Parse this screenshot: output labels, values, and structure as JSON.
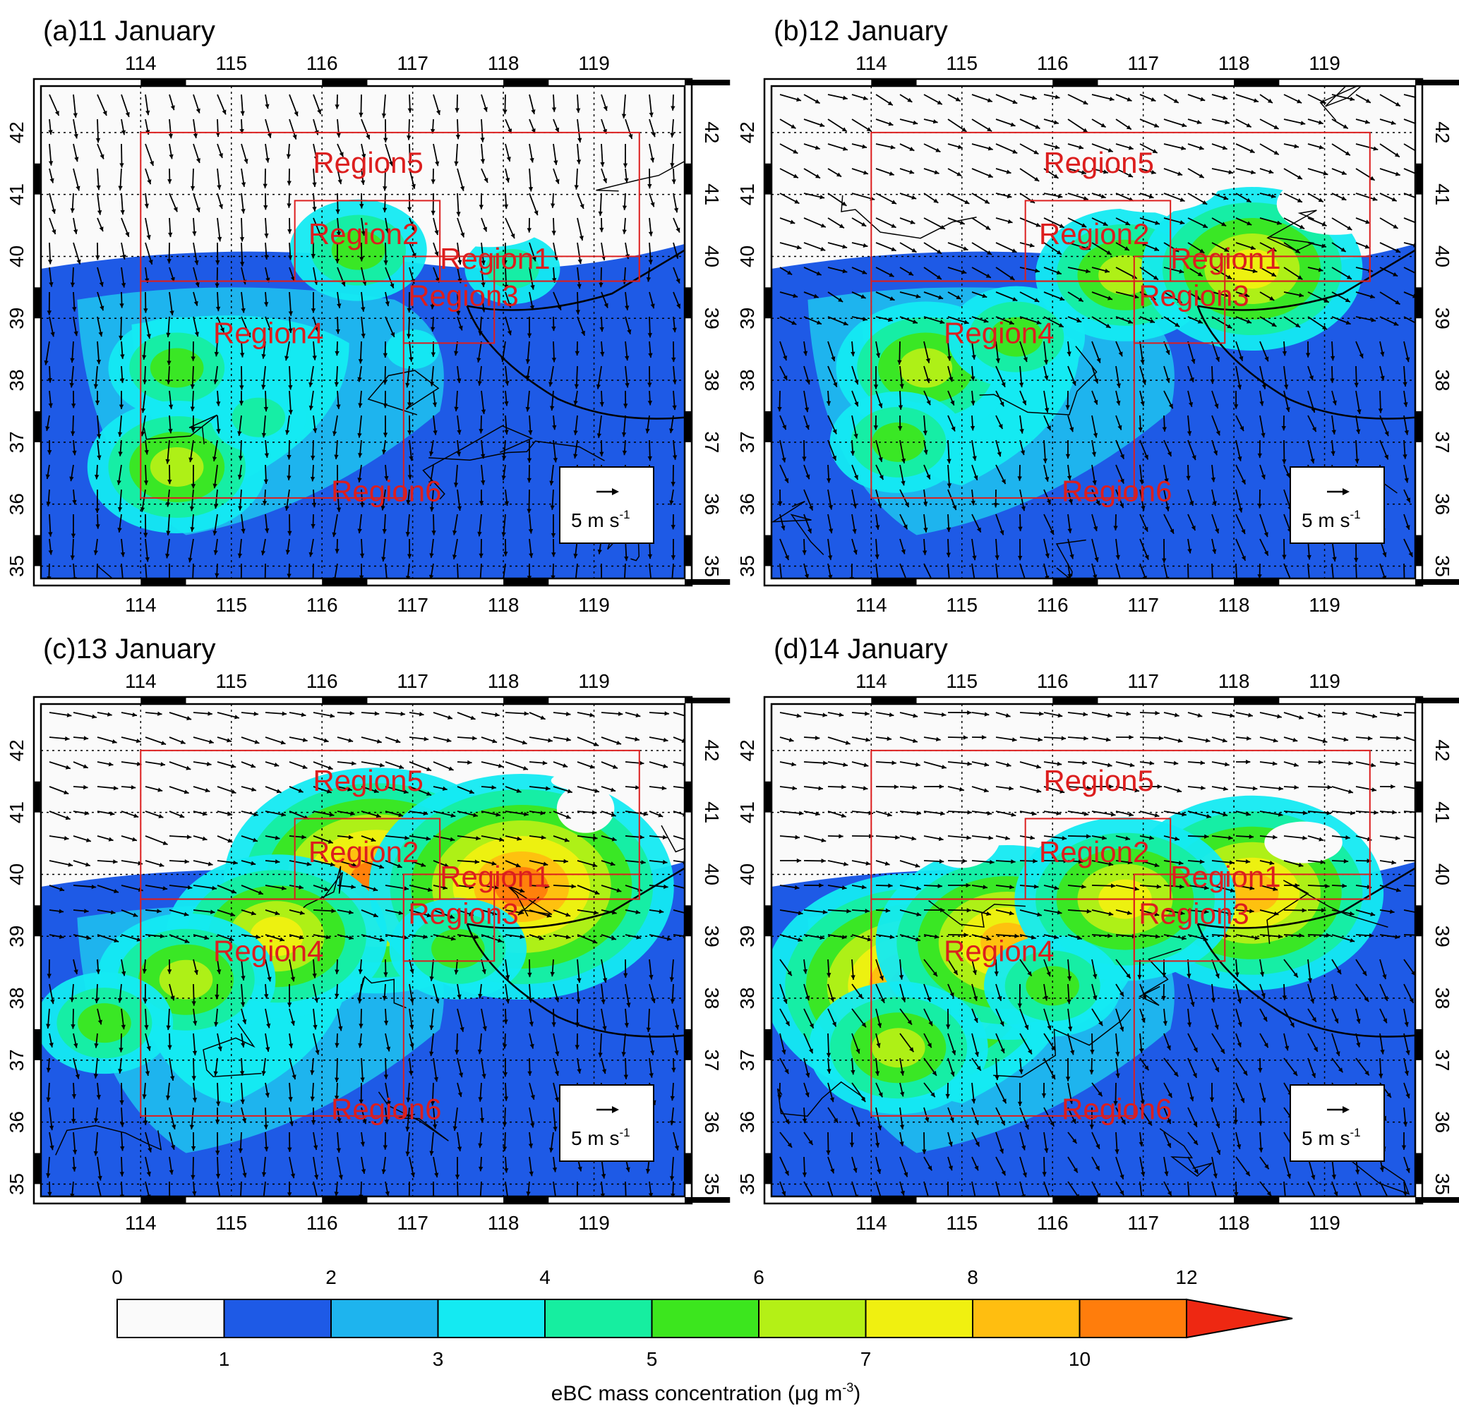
{
  "panels": [
    {
      "label": "(a)11 January",
      "date": "11 January",
      "hotspots": [
        {
          "lon": 114.4,
          "lat": 38.2,
          "level": 5
        },
        {
          "lon": 114.4,
          "lat": 36.6,
          "level": 6
        },
        {
          "lon": 116.4,
          "lat": 40.1,
          "level": 5
        },
        {
          "lon": 115.3,
          "lat": 37.4,
          "level": 4
        },
        {
          "lon": 117.0,
          "lat": 38.5,
          "level": 3
        },
        {
          "lon": 118.1,
          "lat": 39.8,
          "level": 4
        }
      ]
    },
    {
      "label": "(b)12 January",
      "date": "12 January",
      "hotspots": [
        {
          "lon": 116.8,
          "lat": 39.7,
          "level": 6
        },
        {
          "lon": 118.2,
          "lat": 39.8,
          "level": 7
        },
        {
          "lon": 114.6,
          "lat": 38.2,
          "level": 6
        },
        {
          "lon": 115.6,
          "lat": 38.7,
          "level": 5
        },
        {
          "lon": 114.3,
          "lat": 37.0,
          "level": 5
        },
        {
          "lon": 119.0,
          "lat": 38.2,
          "level": 2
        }
      ]
    },
    {
      "label": "(c)13 January",
      "date": "13 January",
      "hotspots": [
        {
          "lon": 116.6,
          "lat": 39.9,
          "level": 9
        },
        {
          "lon": 118.2,
          "lat": 39.8,
          "level": 9
        },
        {
          "lon": 115.5,
          "lat": 39.0,
          "level": 7
        },
        {
          "lon": 114.5,
          "lat": 38.3,
          "level": 6
        },
        {
          "lon": 113.6,
          "lat": 37.6,
          "level": 5
        },
        {
          "lon": 117.5,
          "lat": 38.8,
          "level": 5
        }
      ]
    },
    {
      "label": "(d)14 January",
      "date": "14 January",
      "hotspots": [
        {
          "lon": 114.5,
          "lat": 38.2,
          "level": 9
        },
        {
          "lon": 115.5,
          "lat": 38.9,
          "level": 8
        },
        {
          "lon": 118.2,
          "lat": 39.7,
          "level": 8
        },
        {
          "lon": 116.8,
          "lat": 39.6,
          "level": 7
        },
        {
          "lon": 114.3,
          "lat": 37.2,
          "level": 6
        },
        {
          "lon": 116.0,
          "lat": 38.2,
          "level": 5
        }
      ]
    }
  ],
  "axes": {
    "lon_ticks": [
      "114",
      "115",
      "116",
      "117",
      "118",
      "119"
    ],
    "lat_ticks": [
      "35",
      "36",
      "37",
      "38",
      "39",
      "40",
      "41",
      "42"
    ],
    "lon_range": [
      112.9,
      120.0
    ],
    "lat_range": [
      34.8,
      42.75
    ]
  },
  "regions": [
    {
      "name": "Region5",
      "lon": [
        114.0,
        119.5
      ],
      "lat": [
        39.6,
        42.0
      ]
    },
    {
      "name": "Region2",
      "lon": [
        115.7,
        117.3
      ],
      "lat": [
        39.6,
        40.9
      ]
    },
    {
      "name": "Region1",
      "lon": [
        117.3,
        119.5
      ],
      "lat": [
        39.6,
        40.0
      ]
    },
    {
      "name": "Region3",
      "lon": [
        116.9,
        117.9
      ],
      "lat": [
        38.6,
        40.0
      ]
    },
    {
      "name": "Region4",
      "lon": [
        114.0,
        116.9
      ],
      "lat": [
        36.1,
        39.6
      ]
    },
    {
      "name": "Region6",
      "lon": [],
      "lat": []
    }
  ],
  "reference_vector": {
    "label": "5 m s",
    "superscript": "-1"
  },
  "colorbar": {
    "title": "eBC mass concentration (μg m",
    "title_superscript": "-3",
    "title_suffix": ")",
    "top_labels": [
      "0",
      "2",
      "4",
      "6",
      "8",
      "12"
    ],
    "bottom_labels": [
      "1",
      "3",
      "5",
      "7",
      "10"
    ],
    "colors": [
      "#fafafa",
      "#1e5ae6",
      "#1eb4ee",
      "#14eaf2",
      "#16eea0",
      "#3ce61e",
      "#b4f016",
      "#f0f010",
      "#ffbe10",
      "#ff7d0c",
      "#ee2812"
    ]
  },
  "wind_color": "#000000",
  "region_color": "#dc1e1e"
}
